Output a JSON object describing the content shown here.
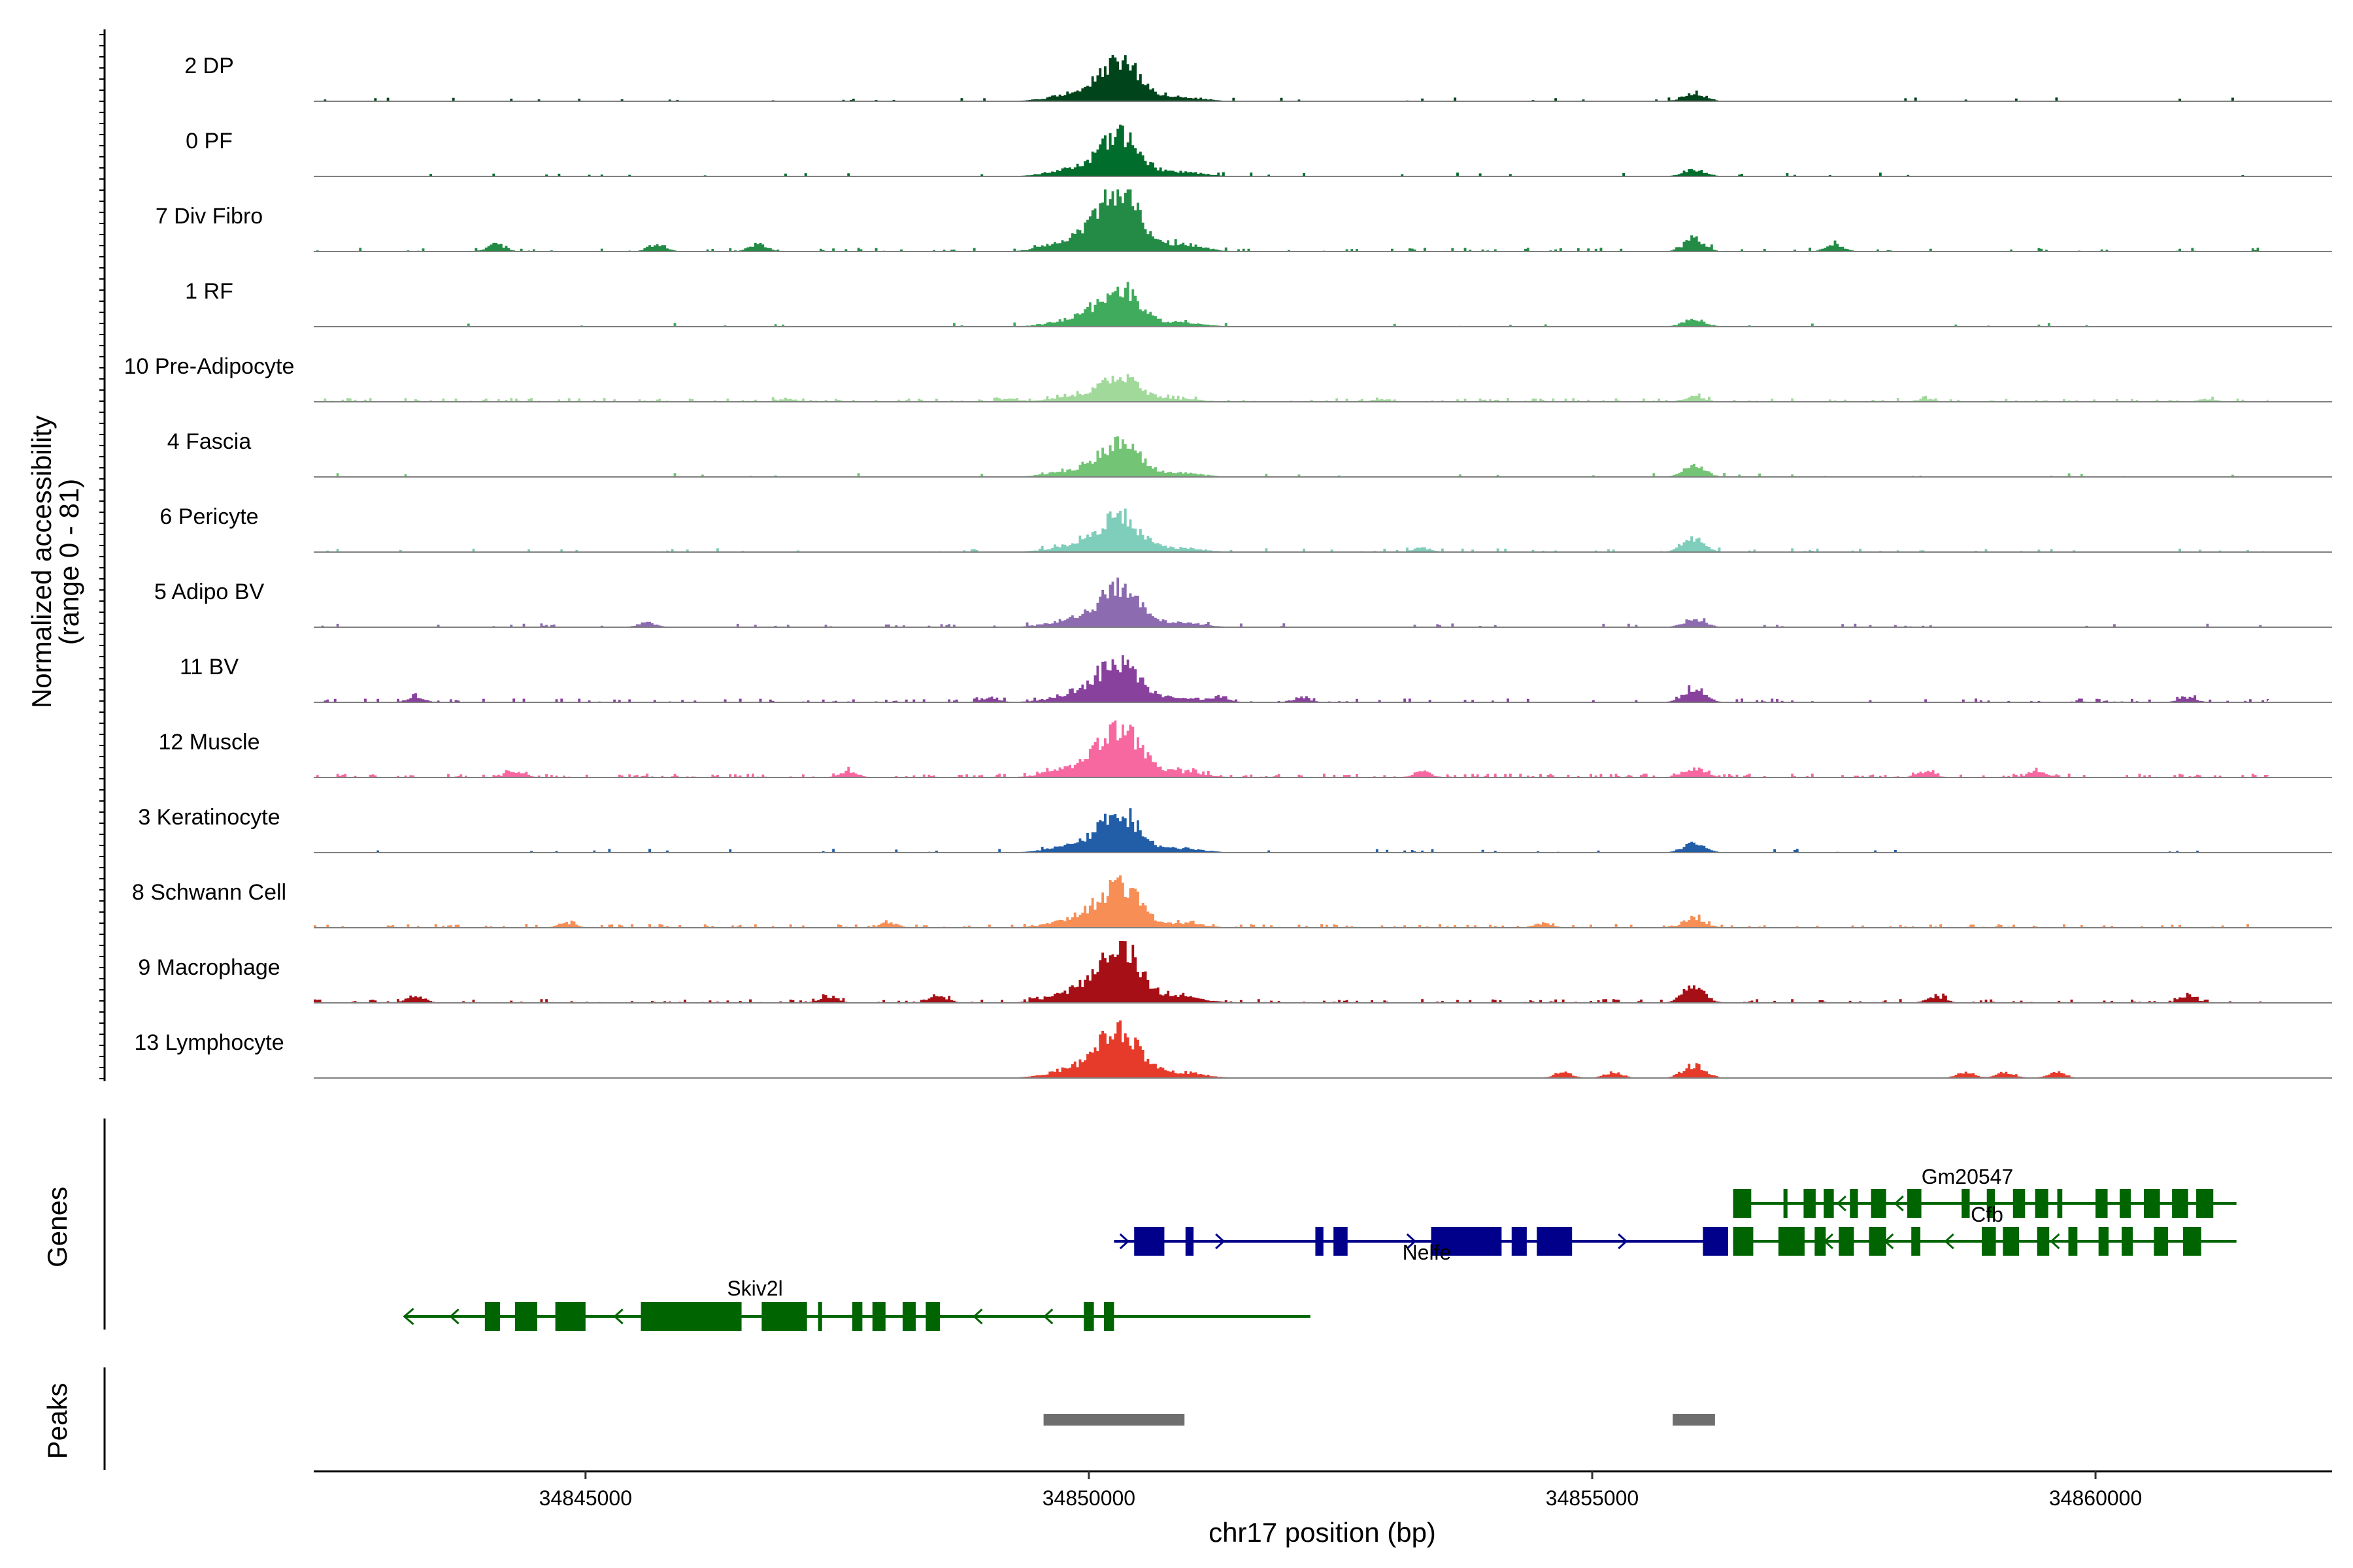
{
  "chart_data": {
    "type": "area",
    "title": "",
    "chromosome": "chr17",
    "xlabel": "chr17 position (bp)",
    "xlim": [
      34842300,
      34862350
    ],
    "xticks": [
      34845000,
      34850000,
      34855000,
      34860000
    ],
    "xtick_labels": [
      "34845000",
      "34850000",
      "34855000",
      "34860000"
    ],
    "ylabel": "Normalized accessibility",
    "ylabel_range": "(range 0 - 81)",
    "ylim": [
      0,
      81
    ],
    "series": [
      {
        "name": "2 DP",
        "color": "#00441b",
        "peak": 48,
        "secondary": 11,
        "noise": 0.05,
        "spots": []
      },
      {
        "name": "0 PF",
        "color": "#006d2c",
        "peak": 51,
        "secondary": 9,
        "noise": 0.04,
        "spots": []
      },
      {
        "name": "7 Div Fibro",
        "color": "#238b45",
        "peak": 81,
        "secondary": 8,
        "noise": 0.12,
        "spots": [
          34844100,
          34845700,
          34846700,
          34856000,
          34857400
        ]
      },
      {
        "name": "1 RF",
        "color": "#41ab5d",
        "peak": 48,
        "secondary": 10,
        "noise": 0.03,
        "spots": []
      },
      {
        "name": "10 Pre-Adipocyte",
        "color": "#a1d99b",
        "peak": 31,
        "secondary": 6,
        "noise": 0.22,
        "spots": [
          34847000,
          34849200,
          34852900,
          34858300,
          34861100
        ]
      },
      {
        "name": "4 Fascia",
        "color": "#74c476",
        "peak": 42,
        "secondary": 15,
        "noise": 0.05,
        "spots": []
      },
      {
        "name": "6 Pericyte",
        "color": "#7fcdbb",
        "peak": 45,
        "secondary": 18,
        "noise": 0.09,
        "spots": [
          34853300
        ]
      },
      {
        "name": "5 Adipo BV",
        "color": "#8c6bb1",
        "peak": 50,
        "secondary": 10,
        "noise": 0.08,
        "spots": [
          34845600
        ]
      },
      {
        "name": "11 BV",
        "color": "#88419d",
        "peak": 52,
        "secondary": 16,
        "noise": 0.16,
        "spots": [
          34843300,
          34849000,
          34851300,
          34852100,
          34860900
        ]
      },
      {
        "name": "12 Muscle",
        "color": "#f768a1",
        "peak": 64,
        "secondary": 12,
        "noise": 0.28,
        "spots": [
          34844300,
          34847600,
          34853300,
          34858300,
          34859400
        ]
      },
      {
        "name": "3 Keratinocyte",
        "color": "#225ea8",
        "peak": 48,
        "secondary": 12,
        "noise": 0.06,
        "spots": []
      },
      {
        "name": "8 Schwann Cell",
        "color": "#f68e55",
        "peak": 52,
        "secondary": 13,
        "noise": 0.2,
        "spots": [
          34844800,
          34848000,
          34854500
        ]
      },
      {
        "name": "9 Macrophage",
        "color": "#a50f15",
        "peak": 74,
        "secondary": 22,
        "noise": 0.22,
        "spots": [
          34843300,
          34847400,
          34848500,
          34858400,
          34860900
        ]
      },
      {
        "name": "13 Lymphocyte",
        "color": "#e63a2b",
        "peak": 63,
        "secondary": 17,
        "noise": 0.0,
        "spots": [
          34854700,
          34855200,
          34858700,
          34859100,
          34859600
        ]
      }
    ],
    "genes_label": "Genes",
    "genes": [
      {
        "name": "Skiv2l",
        "strand": "-",
        "color": "#006400",
        "start": 34843200,
        "end": 34852200,
        "row": 2,
        "exons": [
          [
            34844000,
            34844150
          ],
          [
            34844300,
            34844520
          ],
          [
            34844700,
            34845000
          ],
          [
            34845550,
            34846550
          ],
          [
            34846750,
            34847200
          ],
          [
            34847310,
            34847350
          ],
          [
            34847650,
            34847750
          ],
          [
            34847850,
            34847980
          ],
          [
            34848150,
            34848280
          ],
          [
            34848380,
            34848520
          ],
          [
            34849950,
            34850050
          ],
          [
            34850150,
            34850250
          ]
        ],
        "chevrons": [
          34843700,
          34845330,
          34848900,
          34849600
        ]
      },
      {
        "name": "Nelfe",
        "strand": "+",
        "color": "#00008b",
        "start": 34850250,
        "end": 34856350,
        "row": 1,
        "exons": [
          [
            34850450,
            34850750
          ],
          [
            34850960,
            34851040
          ],
          [
            34852250,
            34852330
          ],
          [
            34852430,
            34852570
          ],
          [
            34853400,
            34854100
          ],
          [
            34854200,
            34854350
          ],
          [
            34854450,
            34854800
          ],
          [
            34856100,
            34856350
          ]
        ],
        "chevrons": [
          34850350,
          34851300,
          34853200,
          34855300
        ]
      },
      {
        "name": "Cfb",
        "strand": "-",
        "color": "#006400",
        "start": 34856400,
        "end": 34861400,
        "row": 1,
        "exons": [
          [
            34856400,
            34856600
          ],
          [
            34856850,
            34857110
          ],
          [
            34857210,
            34857320
          ],
          [
            34857450,
            34857600
          ],
          [
            34857750,
            34857920
          ],
          [
            34858170,
            34858260
          ],
          [
            34858870,
            34859010
          ],
          [
            34859080,
            34859240
          ],
          [
            34859420,
            34859540
          ],
          [
            34859730,
            34859820
          ],
          [
            34860030,
            34860130
          ],
          [
            34860260,
            34860370
          ],
          [
            34860580,
            34860720
          ],
          [
            34860870,
            34861050
          ]
        ],
        "chevrons": [
          34857350,
          34857950,
          34858550,
          34859600
        ]
      },
      {
        "name": "Gm20547",
        "strand": "-",
        "color": "#006400",
        "start": 34856400,
        "end": 34861400,
        "row": 0,
        "exons": [
          [
            34856400,
            34856580
          ],
          [
            34856900,
            34856940
          ],
          [
            34857100,
            34857220
          ],
          [
            34857300,
            34857400
          ],
          [
            34857560,
            34857640
          ],
          [
            34857770,
            34857920
          ],
          [
            34858130,
            34858270
          ],
          [
            34858670,
            34858750
          ],
          [
            34858920,
            34859000
          ],
          [
            34859180,
            34859300
          ],
          [
            34859400,
            34859530
          ],
          [
            34859620,
            34859670
          ],
          [
            34860000,
            34860120
          ],
          [
            34860240,
            34860350
          ],
          [
            34860480,
            34860640
          ],
          [
            34860760,
            34860920
          ],
          [
            34861000,
            34861170
          ]
        ],
        "chevrons": [
          34857480,
          34858050,
          34859480,
          34860560
        ]
      }
    ],
    "peaks_label": "Peaks",
    "peaks": [
      [
        34849550,
        34850950
      ],
      [
        34855800,
        34856220
      ]
    ]
  }
}
